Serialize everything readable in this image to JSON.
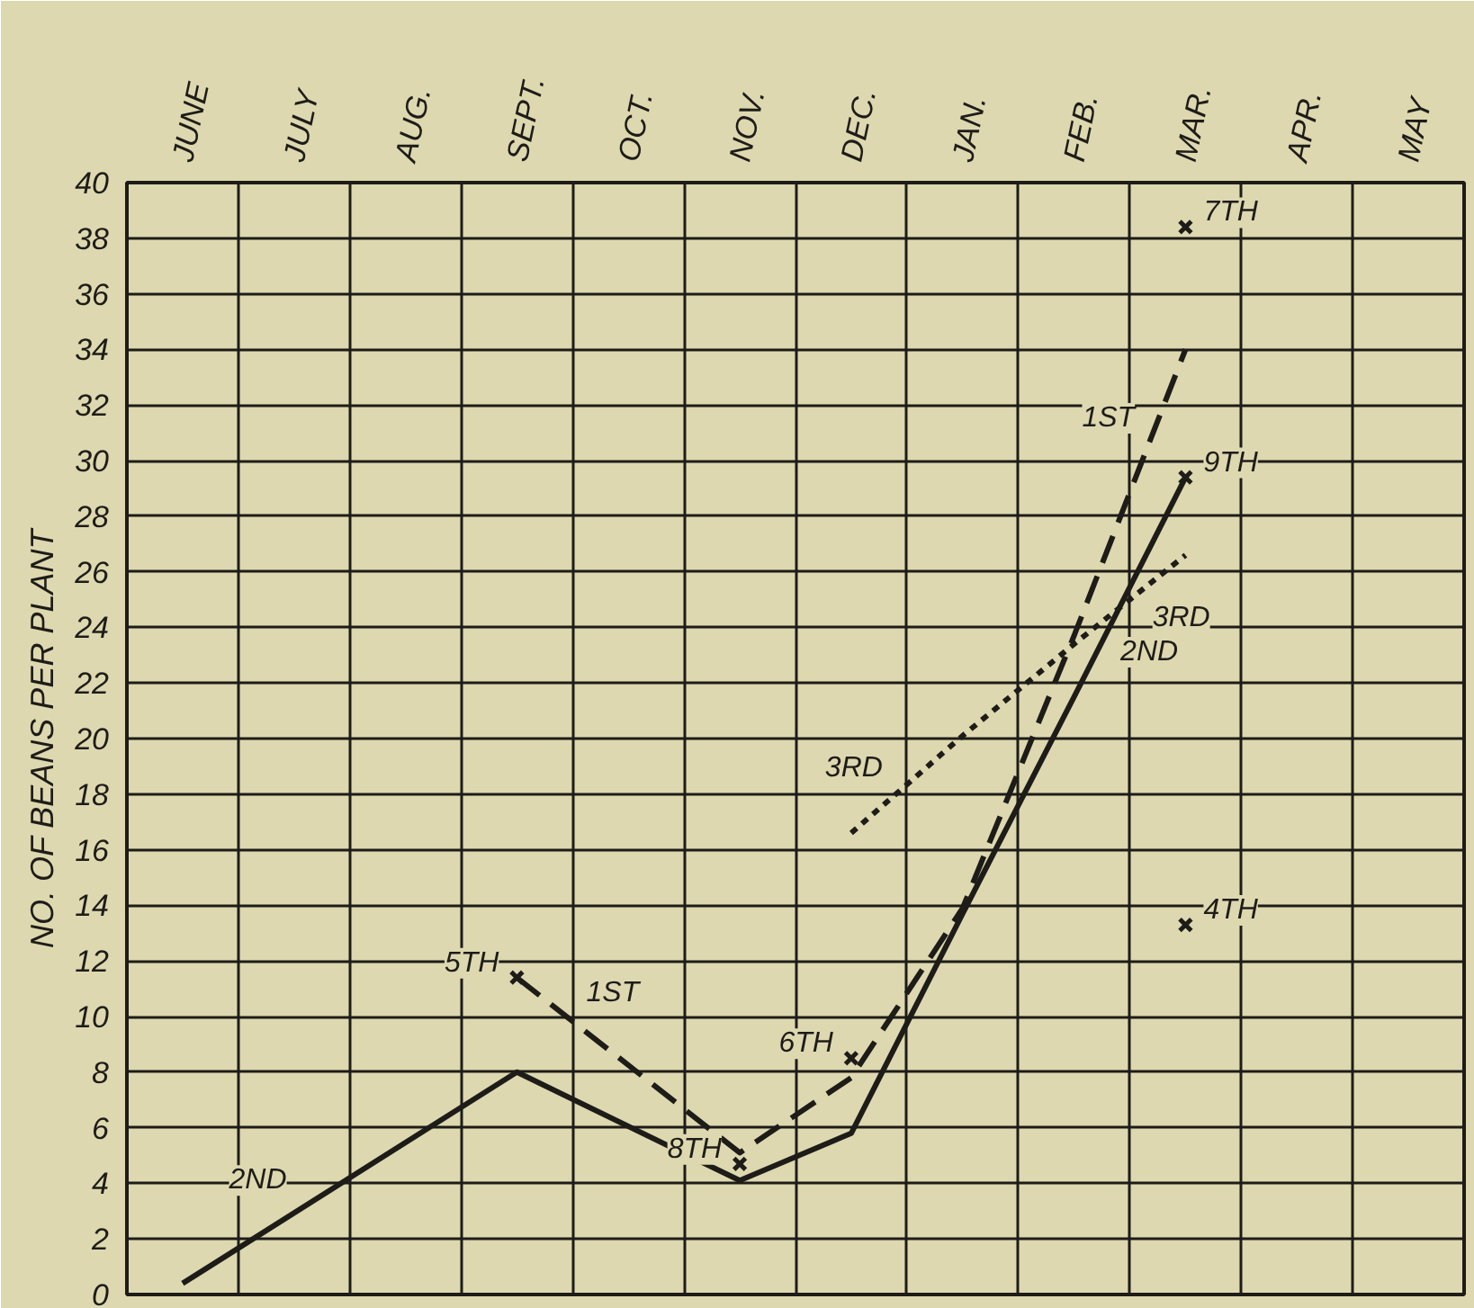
{
  "chart_data": {
    "type": "line",
    "ylabel": "NO. OF BEANS PER PLANT",
    "categories": [
      "JUNE",
      "JULY",
      "AUG.",
      "SEPT.",
      "OCT.",
      "NOV.",
      "DEC.",
      "JAN.",
      "FEB.",
      "MAR.",
      "APR.",
      "MAY"
    ],
    "ylim": [
      0,
      40
    ],
    "yticks": [
      0,
      2,
      4,
      6,
      8,
      10,
      12,
      14,
      16,
      18,
      20,
      22,
      24,
      26,
      28,
      30,
      32,
      34,
      36,
      38,
      40
    ],
    "grid": true,
    "series": [
      {
        "name": "2ND",
        "color": "#1e1c18",
        "line_style": "solid",
        "values": [
          0.4,
          null,
          null,
          8.0,
          null,
          4.1,
          5.8,
          13.7,
          21.5,
          29.4,
          null,
          null
        ]
      },
      {
        "name": "1ST",
        "color": "#1e1c18",
        "line_style": "dashed",
        "values": [
          null,
          null,
          null,
          11.4,
          null,
          5.1,
          7.8,
          13.9,
          23.7,
          34.0,
          null,
          null
        ]
      },
      {
        "name": "3RD",
        "color": "#1e1c18",
        "line_style": "dotted",
        "values": [
          null,
          null,
          null,
          null,
          null,
          null,
          16.6,
          20.1,
          23.4,
          26.6,
          null,
          null
        ]
      },
      {
        "name": "5TH",
        "type": "scatter",
        "marker": "cross",
        "color": "#1e1c18",
        "values": [
          null,
          null,
          null,
          11.4,
          null,
          null,
          null,
          null,
          null,
          null,
          null,
          null
        ]
      },
      {
        "name": "8TH",
        "type": "scatter",
        "marker": "cross",
        "color": "#1e1c18",
        "values": [
          null,
          null,
          null,
          null,
          null,
          4.7,
          null,
          null,
          null,
          null,
          null,
          null
        ]
      },
      {
        "name": "6TH",
        "type": "scatter",
        "marker": "cross",
        "color": "#1e1c18",
        "values": [
          null,
          null,
          null,
          null,
          null,
          null,
          8.5,
          null,
          null,
          null,
          null,
          null
        ]
      },
      {
        "name": "4TH",
        "type": "scatter",
        "marker": "cross",
        "color": "#1e1c18",
        "values": [
          null,
          null,
          null,
          null,
          null,
          null,
          null,
          null,
          null,
          13.3,
          null,
          null
        ]
      },
      {
        "name": "7TH",
        "type": "scatter",
        "marker": "cross",
        "color": "#1e1c18",
        "values": [
          null,
          null,
          null,
          null,
          null,
          null,
          null,
          null,
          null,
          38.4,
          null,
          null
        ]
      },
      {
        "name": "9TH",
        "type": "scatter",
        "marker": "cross",
        "color": "#1e1c18",
        "values": [
          null,
          null,
          null,
          null,
          null,
          null,
          null,
          null,
          null,
          29.4,
          null,
          null
        ]
      }
    ]
  }
}
